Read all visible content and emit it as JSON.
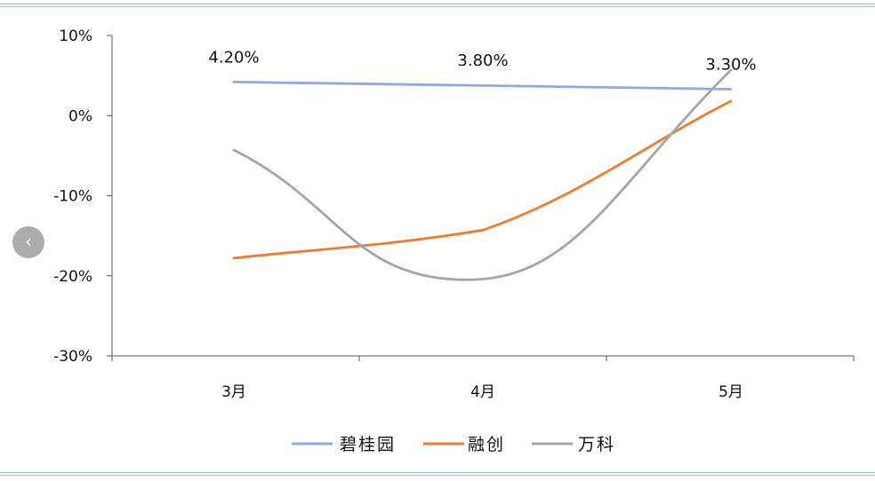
{
  "chart_data": {
    "type": "line",
    "categories": [
      "3月",
      "4月",
      "5月"
    ],
    "ylim": [
      -30,
      10
    ],
    "yticks": [
      "10%",
      "0%",
      "-10%",
      "-20%",
      "-30%"
    ],
    "ytick_values": [
      10,
      0,
      -10,
      -20,
      -30
    ],
    "series": [
      {
        "name": "碧桂园",
        "color": "#8faadc",
        "values": [
          4.2,
          3.8,
          3.3
        ],
        "labels": [
          "4.20%",
          "3.80%",
          "3.30%"
        ]
      },
      {
        "name": "融创",
        "color": "#ed7d31",
        "values": [
          -17.8,
          -14.3,
          1.8
        ]
      },
      {
        "name": "万科",
        "color": "#a5a5a5",
        "values": [
          -4.3,
          -20.5,
          5.7
        ],
        "trough": {
          "x": 2.0,
          "y": -20.5
        }
      }
    ],
    "legend_position": "bottom",
    "grid": false
  },
  "nav": {
    "prev_icon": "chevron-left-icon",
    "prev_glyph": "‹"
  }
}
